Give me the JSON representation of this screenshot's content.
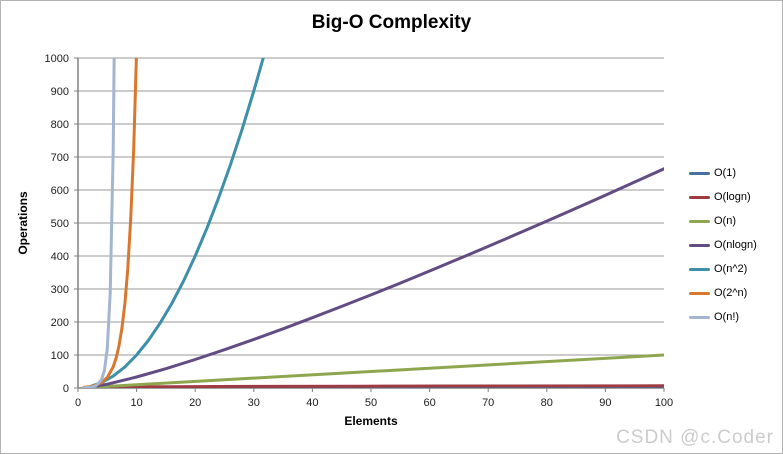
{
  "watermark": "CSDN @c.Coder",
  "chart_data": {
    "type": "line",
    "title": "Big-O Complexity",
    "xlabel": "Elements",
    "ylabel": "Operations",
    "xlim": [
      0,
      100
    ],
    "ylim": [
      0,
      1000
    ],
    "x_ticks": [
      0,
      10,
      20,
      30,
      40,
      50,
      60,
      70,
      80,
      90,
      100
    ],
    "y_ticks": [
      0,
      100,
      200,
      300,
      400,
      500,
      600,
      700,
      800,
      900,
      1000
    ],
    "grid": "horizontal",
    "legend_position": "right",
    "gridline_color": "#999999",
    "axis_color": "#808080",
    "series": [
      {
        "name": "O(1)",
        "color": "#44719E",
        "points": [
          [
            1,
            1
          ],
          [
            100,
            1
          ]
        ]
      },
      {
        "name": "O(logn)",
        "color": "#9E3B43",
        "points": [
          [
            1,
            0
          ],
          [
            2,
            1
          ],
          [
            3,
            1.58
          ],
          [
            4,
            2
          ],
          [
            6,
            2.58
          ],
          [
            8,
            3
          ],
          [
            12,
            3.58
          ],
          [
            16,
            4
          ],
          [
            24,
            4.58
          ],
          [
            32,
            5
          ],
          [
            48,
            5.58
          ],
          [
            64,
            6
          ],
          [
            100,
            6.64
          ]
        ]
      },
      {
        "name": "O(n)",
        "color": "#8EA64E",
        "points": [
          [
            1,
            1
          ],
          [
            100,
            100
          ]
        ]
      },
      {
        "name": "O(nlogn)",
        "color": "#634C83",
        "points": [
          [
            1,
            0
          ],
          [
            5,
            11.61
          ],
          [
            10,
            33.22
          ],
          [
            15,
            58.6
          ],
          [
            20,
            86.44
          ],
          [
            25,
            116.1
          ],
          [
            30,
            147.21
          ],
          [
            35,
            179.52
          ],
          [
            40,
            212.88
          ],
          [
            45,
            247.13
          ],
          [
            50,
            282.19
          ],
          [
            55,
            317.98
          ],
          [
            60,
            354.41
          ],
          [
            65,
            391.46
          ],
          [
            70,
            429.05
          ],
          [
            75,
            467.16
          ],
          [
            80,
            505.75
          ],
          [
            85,
            544.8
          ],
          [
            90,
            584.27
          ],
          [
            95,
            624.14
          ],
          [
            100,
            664.39
          ]
        ]
      },
      {
        "name": "O(n^2)",
        "color": "#3E8FA9",
        "points": [
          [
            1,
            1
          ],
          [
            2,
            4
          ],
          [
            4,
            16
          ],
          [
            6,
            36
          ],
          [
            8,
            64
          ],
          [
            10,
            100
          ],
          [
            12,
            144
          ],
          [
            14,
            196
          ],
          [
            16,
            256
          ],
          [
            18,
            324
          ],
          [
            20,
            400
          ],
          [
            22,
            484
          ],
          [
            24,
            576
          ],
          [
            26,
            676
          ],
          [
            28,
            784
          ],
          [
            30,
            900
          ],
          [
            32,
            1024
          ]
        ]
      },
      {
        "name": "O(2^n)",
        "color": "#D9772E",
        "points": [
          [
            1,
            2
          ],
          [
            2,
            4
          ],
          [
            3,
            8
          ],
          [
            4,
            16
          ],
          [
            5,
            32
          ],
          [
            6,
            64
          ],
          [
            6.5,
            90.5
          ],
          [
            7,
            128
          ],
          [
            7.5,
            181
          ],
          [
            8,
            256
          ],
          [
            8.5,
            362
          ],
          [
            9,
            512
          ],
          [
            9.5,
            724
          ],
          [
            10,
            1024
          ],
          [
            10.1,
            1097
          ]
        ]
      },
      {
        "name": "O(n!)",
        "color": "#A3B5D0",
        "points": [
          [
            1,
            1
          ],
          [
            2,
            2
          ],
          [
            3,
            6
          ],
          [
            4,
            24
          ],
          [
            4.5,
            52.3
          ],
          [
            5,
            120
          ],
          [
            5.5,
            287.9
          ],
          [
            6,
            720
          ],
          [
            6.25,
            1133
          ]
        ]
      }
    ]
  }
}
